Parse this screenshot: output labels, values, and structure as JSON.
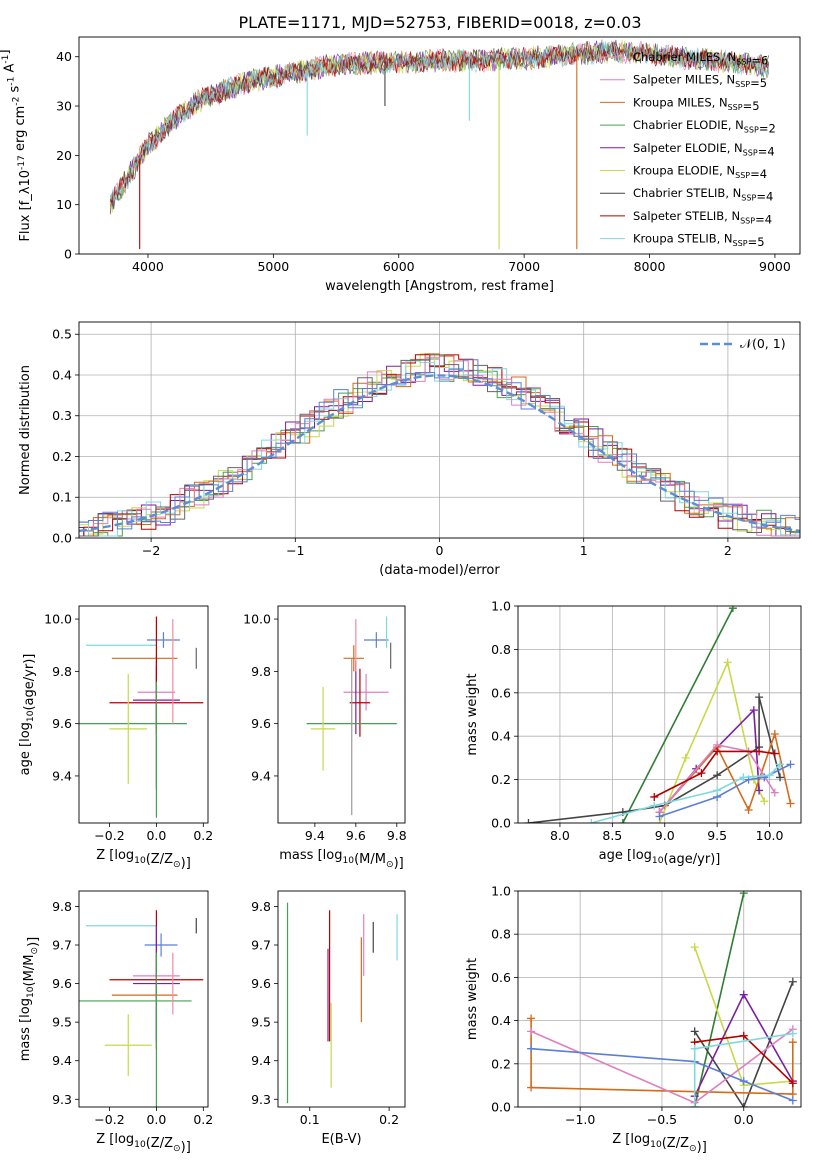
{
  "figure": {
    "title": "PLATE=1171, MJD=52753, FIBERID=0018, z=0.03"
  },
  "colors": {
    "series": [
      "#f08c9e",
      "#d46a1a",
      "#4a9e54",
      "#7b1fa2",
      "#c8d94a",
      "#666666",
      "#b30000",
      "#7fd8e0",
      "#5b7fd4",
      "#e07fbf",
      "#2e7d32"
    ]
  },
  "chart_data": [
    {
      "type": "line",
      "id": "spectrum",
      "xlabel": "wavelength [Angstrom, rest frame]",
      "ylabel": "Flux [f_λ10^{-17} erg cm^{-2} s^{-1} A^{-1}]",
      "xlim": [
        3450,
        9200
      ],
      "ylim": [
        0,
        44
      ],
      "xticks": [
        4000,
        5000,
        6000,
        7000,
        8000,
        9000
      ],
      "yticks": [
        0,
        10,
        20,
        30,
        40
      ],
      "grid": false,
      "legend_position": "right",
      "legend": [
        {
          "label": "Chabrier MILES, N_SSP=6",
          "color": "#f08c9e"
        },
        {
          "label": "Salpeter MILES, N_SSP=5",
          "color": "#e07fbf"
        },
        {
          "label": "Kroupa MILES, N_SSP=5",
          "color": "#d46a1a"
        },
        {
          "label": "Chabrier ELODIE, N_SSP=2",
          "color": "#4a9e54"
        },
        {
          "label": "Salpeter ELODIE, N_SSP=4",
          "color": "#7b1fa2"
        },
        {
          "label": "Kroupa ELODIE, N_SSP=4",
          "color": "#c8d94a"
        },
        {
          "label": "Chabrier STELIB, N_SSP=4",
          "color": "#444444"
        },
        {
          "label": "Salpeter STELIB, N_SSP=4",
          "color": "#b30000"
        },
        {
          "label": "Kroupa STELIB, N_SSP=5",
          "color": "#7fd8e0"
        }
      ],
      "continuum_x": [
        3700,
        3800,
        3900,
        4000,
        4200,
        4400,
        4600,
        4800,
        5000,
        5200,
        5400,
        5600,
        5800,
        6000,
        6200,
        6400,
        6600,
        6800,
        7000,
        7200,
        7400,
        7600,
        7800,
        8000,
        8200,
        8400,
        8600,
        8800,
        8950
      ],
      "continuum_y": [
        10,
        14,
        18,
        22,
        27,
        31,
        33,
        35,
        36,
        37,
        38,
        38.5,
        38.8,
        39,
        39,
        39.2,
        39.3,
        39.5,
        39.7,
        40,
        40.5,
        41,
        41,
        40.5,
        40,
        39.5,
        39,
        38.5,
        38
      ],
      "dip_x": [
        3934,
        5270,
        5890,
        6563,
        6800,
        7420
      ],
      "dip_y": [
        1,
        24,
        30,
        27,
        1,
        1
      ]
    },
    {
      "type": "histogram",
      "id": "residuals",
      "xlabel": "(data-model)/error",
      "ylabel": "Normed distribution",
      "xlim": [
        -2.5,
        2.5
      ],
      "ylim": [
        0,
        0.53
      ],
      "xticks": [
        -2,
        -1,
        0,
        1,
        2
      ],
      "yticks": [
        0.0,
        0.1,
        0.2,
        0.3,
        0.4,
        0.5
      ],
      "grid": true,
      "legend_position": "top-right",
      "reference_label": "𝒩(0, 1)",
      "reference_mean": 0,
      "reference_std": 1,
      "bin_width": 0.1,
      "n_series": 9
    },
    {
      "type": "errorbar",
      "id": "z-age",
      "xlabel": "Z [log10(Z/Z⊙)]",
      "ylabel": "age  [log10(age/yr)]",
      "xlim": [
        -0.33,
        0.22
      ],
      "ylim": [
        9.22,
        10.05
      ],
      "xticks": [
        -0.2,
        0.0,
        0.2
      ],
      "yticks": [
        9.4,
        9.6,
        9.8,
        10.0
      ],
      "points": [
        {
          "x": -0.15,
          "y": 9.9,
          "xerr": 0.15,
          "yerr": 0.0,
          "color": "#7fd8e0"
        },
        {
          "x": 0.03,
          "y": 9.92,
          "xerr": 0.07,
          "yerr": 0.03,
          "color": "#5b7fd4"
        },
        {
          "x": -0.05,
          "y": 9.85,
          "xerr": 0.14,
          "yerr": 0.0,
          "color": "#d46a1a"
        },
        {
          "x": 0.17,
          "y": 9.85,
          "xerr": 0.0,
          "yerr": 0.04,
          "color": "#666666"
        },
        {
          "x": 0.0,
          "y": 9.72,
          "xerr": 0.08,
          "yerr": 0.14,
          "color": "#e07fbf"
        },
        {
          "x": 0.0,
          "y": 9.69,
          "xerr": 0.1,
          "yerr": 0.13,
          "color": "#7b1fa2"
        },
        {
          "x": 0.0,
          "y": 9.68,
          "xerr": 0.2,
          "yerr": 0.33,
          "color": "#b30000"
        },
        {
          "x": -0.1,
          "y": 9.6,
          "xerr": 0.23,
          "yerr": 0.0,
          "color": "#4a9e54"
        },
        {
          "x": -0.12,
          "y": 9.58,
          "xerr": 0.08,
          "yerr": 0.21,
          "color": "#c8d94a"
        },
        {
          "x": 0.0,
          "y": 9.5,
          "xerr": 0.0,
          "yerr": 0.26,
          "color": "#4a9e54"
        },
        {
          "x": 0.07,
          "y": 9.8,
          "xerr": 0.0,
          "yerr": 0.2,
          "color": "#f08c9e"
        }
      ]
    },
    {
      "type": "errorbar",
      "id": "mass-age",
      "xlabel": "mass [log10(M/M⊙)]",
      "ylabel": "",
      "xlim": [
        9.22,
        9.84
      ],
      "ylim": [
        9.22,
        10.05
      ],
      "xticks": [
        9.4,
        9.6,
        9.8
      ],
      "yticks": [
        9.4,
        9.6,
        9.8,
        10.0
      ],
      "points": [
        {
          "x": 9.7,
          "y": 9.92,
          "xerr": 0.06,
          "yerr": 0.03,
          "color": "#5b7fd4"
        },
        {
          "x": 9.75,
          "y": 9.95,
          "xerr": 0.0,
          "yerr": 0.06,
          "color": "#7fd8e0"
        },
        {
          "x": 9.77,
          "y": 9.86,
          "xerr": 0.0,
          "yerr": 0.05,
          "color": "#666666"
        },
        {
          "x": 9.59,
          "y": 9.85,
          "xerr": 0.05,
          "yerr": 0.05,
          "color": "#d46a1a"
        },
        {
          "x": 9.65,
          "y": 9.72,
          "xerr": 0.11,
          "yerr": 0.07,
          "color": "#e07fbf"
        },
        {
          "x": 9.62,
          "y": 9.68,
          "xerr": 0.05,
          "yerr": 0.13,
          "color": "#b30000"
        },
        {
          "x": 9.6,
          "y": 9.7,
          "xerr": 0.0,
          "yerr": 0.14,
          "color": "#7b1fa2"
        },
        {
          "x": 9.58,
          "y": 9.6,
          "xerr": 0.22,
          "yerr": 0.0,
          "color": "#4a9e54"
        },
        {
          "x": 9.44,
          "y": 9.58,
          "xerr": 0.06,
          "yerr": 0.16,
          "color": "#c8d94a"
        },
        {
          "x": 9.58,
          "y": 9.55,
          "xerr": 0.0,
          "yerr": 0.3,
          "color": "#999999"
        },
        {
          "x": 9.6,
          "y": 9.9,
          "xerr": 0.0,
          "yerr": 0.1,
          "color": "#f08c9e"
        }
      ]
    },
    {
      "type": "line",
      "id": "age-weight",
      "xlabel": "age  [log10(age/yr)]",
      "ylabel": "mass weight",
      "xlim": [
        7.6,
        10.3
      ],
      "ylim": [
        0,
        1.0
      ],
      "xticks": [
        8.0,
        8.5,
        9.0,
        9.5,
        10.0
      ],
      "yticks": [
        0.0,
        0.2,
        0.4,
        0.6,
        0.8,
        1.0
      ],
      "grid": true,
      "series": [
        {
          "color": "#2e7d32",
          "x": [
            8.6,
            9.65
          ],
          "y": [
            0.0,
            0.99
          ]
        },
        {
          "color": "#444444",
          "x": [
            7.7,
            8.6,
            9.0,
            9.5,
            9.9,
            9.9,
            10.1
          ],
          "y": [
            0.0,
            0.05,
            0.08,
            0.22,
            0.35,
            0.58,
            0.21
          ]
        },
        {
          "color": "#c8d94a",
          "x": [
            8.95,
            9.2,
            9.6,
            9.85,
            9.95
          ],
          "y": [
            0.0,
            0.3,
            0.74,
            0.2,
            0.1
          ]
        },
        {
          "color": "#7b1fa2",
          "x": [
            8.95,
            9.3,
            9.85,
            9.9
          ],
          "y": [
            0.05,
            0.25,
            0.52,
            0.15
          ]
        },
        {
          "color": "#d46a1a",
          "x": [
            8.95,
            9.5,
            9.8,
            10.05,
            10.2
          ],
          "y": [
            0.05,
            0.35,
            0.06,
            0.41,
            0.09
          ]
        },
        {
          "color": "#e07fbf",
          "x": [
            8.95,
            9.5,
            9.8,
            10.05
          ],
          "y": [
            0.05,
            0.36,
            0.33,
            0.14
          ]
        },
        {
          "color": "#b30000",
          "x": [
            8.9,
            9.35,
            9.5,
            9.9,
            10.05
          ],
          "y": [
            0.12,
            0.23,
            0.33,
            0.33,
            0.32
          ]
        },
        {
          "color": "#5b7fd4",
          "x": [
            8.95,
            9.5,
            9.8,
            9.95,
            10.2
          ],
          "y": [
            0.03,
            0.12,
            0.2,
            0.21,
            0.27
          ]
        },
        {
          "color": "#7fd8e0",
          "x": [
            8.3,
            8.9,
            9.5,
            9.75,
            10.0,
            10.1
          ],
          "y": [
            0.0,
            0.08,
            0.15,
            0.21,
            0.22,
            0.27
          ]
        }
      ]
    },
    {
      "type": "errorbar",
      "id": "z-mass",
      "xlabel": "Z [log10(Z/Z⊙)]",
      "ylabel": "mass [log10(M/M⊙)]",
      "xlim": [
        -0.33,
        0.22
      ],
      "ylim": [
        9.28,
        9.84
      ],
      "xticks": [
        -0.2,
        0.0,
        0.2
      ],
      "yticks": [
        9.3,
        9.4,
        9.5,
        9.6,
        9.7,
        9.8
      ],
      "points": [
        {
          "x": -0.15,
          "y": 9.75,
          "xerr": 0.15,
          "yerr": 0.0,
          "color": "#7fd8e0"
        },
        {
          "x": 0.02,
          "y": 9.7,
          "xerr": 0.07,
          "yerr": 0.03,
          "color": "#5b7fd4"
        },
        {
          "x": 0.17,
          "y": 9.75,
          "xerr": 0.0,
          "yerr": 0.02,
          "color": "#444444"
        },
        {
          "x": 0.0,
          "y": 9.62,
          "xerr": 0.1,
          "yerr": 0.06,
          "color": "#e07fbf"
        },
        {
          "x": 0.0,
          "y": 9.61,
          "xerr": 0.2,
          "yerr": 0.18,
          "color": "#b30000"
        },
        {
          "x": 0.0,
          "y": 9.6,
          "xerr": 0.1,
          "yerr": 0.15,
          "color": "#7b1fa2"
        },
        {
          "x": -0.05,
          "y": 9.57,
          "xerr": 0.14,
          "yerr": 0.0,
          "color": "#d46a1a"
        },
        {
          "x": -0.1,
          "y": 9.555,
          "xerr": 0.25,
          "yerr": 0.0,
          "color": "#4a9e54"
        },
        {
          "x": -0.12,
          "y": 9.44,
          "xerr": 0.1,
          "yerr": 0.08,
          "color": "#c8d94a"
        },
        {
          "x": 0.0,
          "y": 9.48,
          "xerr": 0.0,
          "yerr": 0.2,
          "color": "#4a9e54"
        },
        {
          "x": 0.07,
          "y": 9.6,
          "xerr": 0.0,
          "yerr": 0.08,
          "color": "#f08c9e"
        }
      ]
    },
    {
      "type": "errorbar",
      "id": "ebv-mass",
      "xlabel": "E(B-V)",
      "ylabel": "",
      "xlim": [
        0.06,
        0.22
      ],
      "ylim": [
        9.28,
        9.84
      ],
      "xticks": [
        0.1,
        0.2
      ],
      "yticks": [
        9.3,
        9.4,
        9.5,
        9.6,
        9.7,
        9.8
      ],
      "points": [
        {
          "x": 0.072,
          "y": 9.55,
          "xerr": 0.0,
          "yerr": 0.26,
          "color": "#4a9e54"
        },
        {
          "x": 0.125,
          "y": 9.62,
          "xerr": 0.0,
          "yerr": 0.17,
          "color": "#b30000"
        },
        {
          "x": 0.123,
          "y": 9.57,
          "xerr": 0.0,
          "yerr": 0.12,
          "color": "#7b1fa2"
        },
        {
          "x": 0.127,
          "y": 9.44,
          "xerr": 0.0,
          "yerr": 0.11,
          "color": "#c8d94a"
        },
        {
          "x": 0.165,
          "y": 9.61,
          "xerr": 0.0,
          "yerr": 0.11,
          "color": "#d46a1a"
        },
        {
          "x": 0.168,
          "y": 9.7,
          "xerr": 0.0,
          "yerr": 0.08,
          "color": "#e07fbf"
        },
        {
          "x": 0.18,
          "y": 9.72,
          "xerr": 0.0,
          "yerr": 0.04,
          "color": "#444444"
        },
        {
          "x": 0.21,
          "y": 9.72,
          "xerr": 0.0,
          "yerr": 0.06,
          "color": "#7fd8e0"
        }
      ]
    },
    {
      "type": "line",
      "id": "z-weight",
      "xlabel": "Z [log10(Z/Z⊙)]",
      "ylabel": "mass weight",
      "xlim": [
        -1.38,
        0.35
      ],
      "ylim": [
        0,
        1.0
      ],
      "xticks": [
        -1.0,
        -0.5,
        0.0
      ],
      "yticks": [
        0.0,
        0.2,
        0.4,
        0.6,
        0.8,
        1.0
      ],
      "grid": true,
      "series": [
        {
          "color": "#2e7d32",
          "x": [
            -0.3,
            0.0
          ],
          "y": [
            0.0,
            0.99
          ]
        },
        {
          "color": "#444444",
          "x": [
            -0.3,
            0.0,
            0.3
          ],
          "y": [
            0.35,
            0.0,
            0.58
          ]
        },
        {
          "color": "#c8d94a",
          "x": [
            -0.3,
            0.0,
            0.3
          ],
          "y": [
            0.74,
            0.1,
            0.12
          ]
        },
        {
          "color": "#7b1fa2",
          "x": [
            -0.3,
            0.0,
            0.3
          ],
          "y": [
            0.05,
            0.52,
            0.12
          ]
        },
        {
          "color": "#d46a1a",
          "x": [
            -1.3,
            -1.3,
            0.3,
            0.3
          ],
          "y": [
            0.41,
            0.09,
            0.06,
            0.3
          ]
        },
        {
          "color": "#e07fbf",
          "x": [
            -1.3,
            -0.3,
            0.3
          ],
          "y": [
            0.35,
            0.02,
            0.36
          ]
        },
        {
          "color": "#b30000",
          "x": [
            -0.3,
            0.0,
            0.3
          ],
          "y": [
            0.3,
            0.33,
            0.11
          ]
        },
        {
          "color": "#5b7fd4",
          "x": [
            -1.3,
            -0.3,
            0.0,
            0.3
          ],
          "y": [
            0.27,
            0.21,
            0.12,
            0.03
          ]
        },
        {
          "color": "#7fd8e0",
          "x": [
            -0.3,
            -0.3,
            0.3
          ],
          "y": [
            0.0,
            0.27,
            0.34
          ]
        }
      ]
    }
  ]
}
